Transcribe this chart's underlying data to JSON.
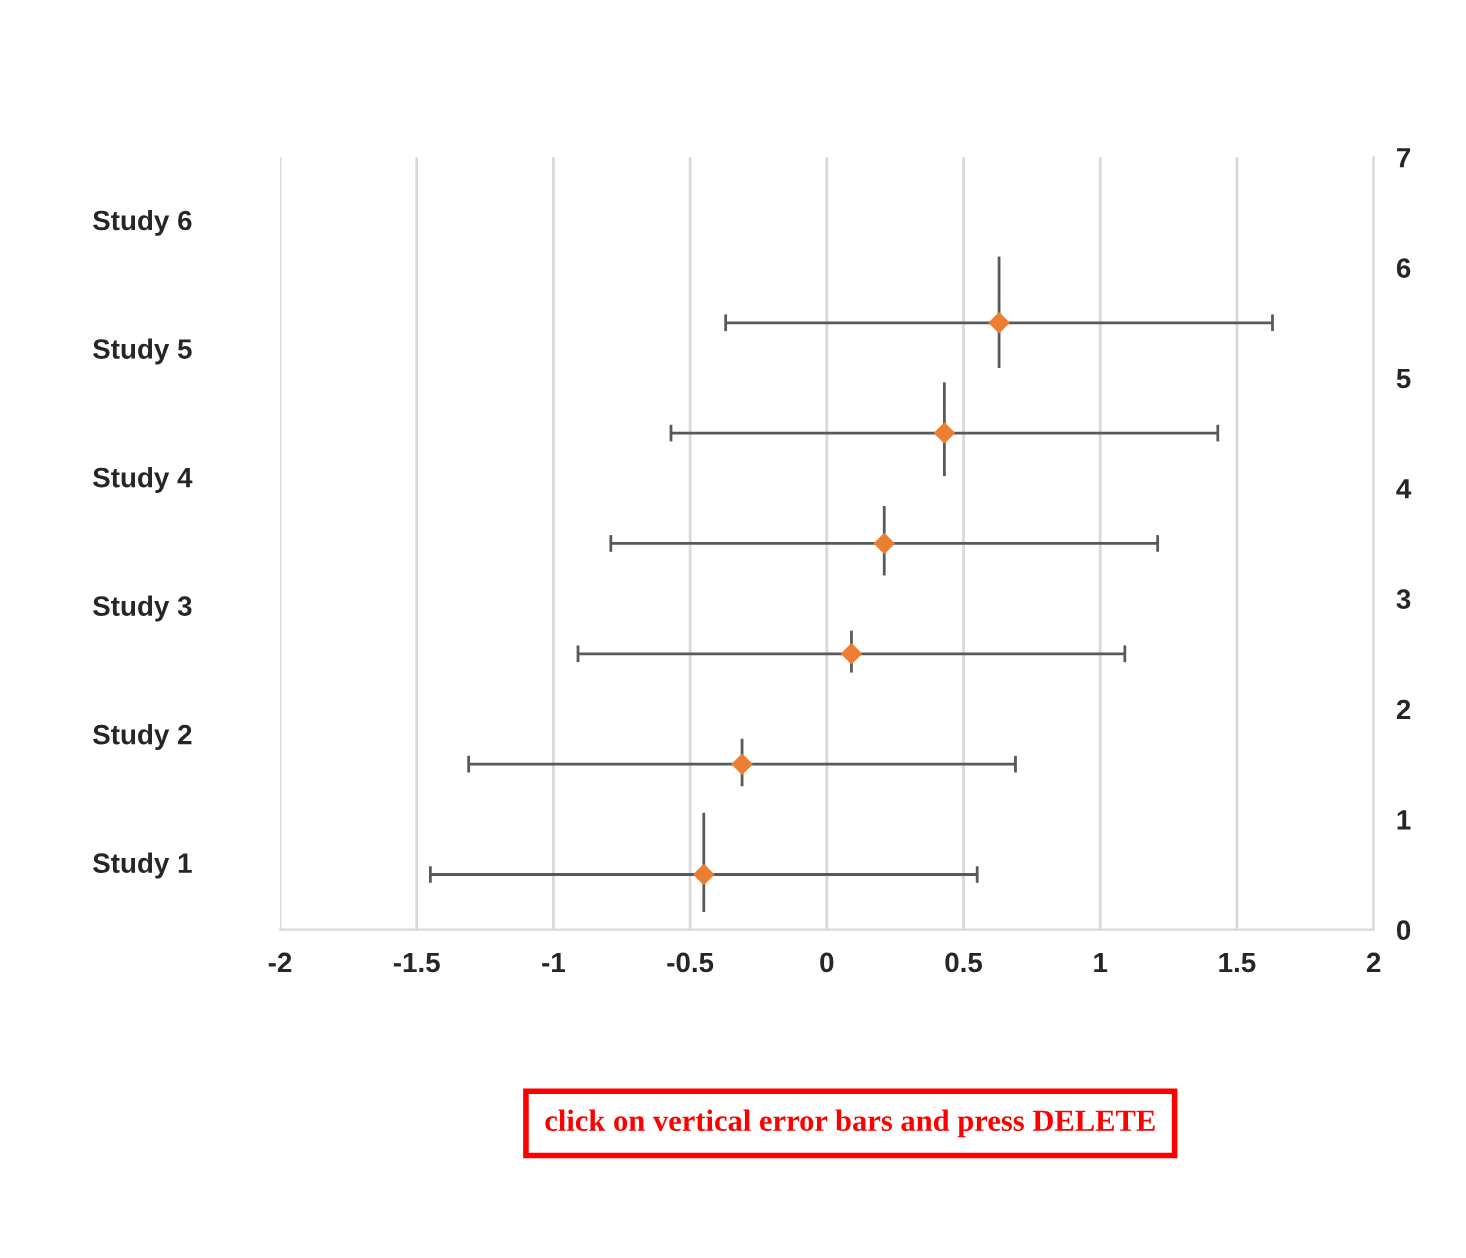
{
  "chart_data": {
    "type": "scatter",
    "x": [
      -0.45,
      -0.31,
      0.09,
      0.21,
      0.43,
      0.63
    ],
    "series": [
      {
        "color": "#ed7d31",
        "values": [
          0.5,
          1.5,
          2.5,
          3.5,
          4.5,
          5.5
        ],
        "xerrors": [
          1,
          1,
          1,
          1,
          1,
          1
        ],
        "errors": [
          [
            0.16,
            1.06
          ],
          [
            1.3,
            1.73
          ],
          [
            2.33,
            2.71
          ],
          [
            3.21,
            3.84
          ],
          [
            4.11,
            4.96
          ],
          [
            5.09,
            6.1
          ]
        ]
      }
    ],
    "marker": "diamond",
    "xlim": [
      -2,
      2
    ],
    "xticks": [
      -2,
      -1.5,
      -1,
      -0.5,
      0,
      0.5,
      1,
      1.5,
      2
    ],
    "ylim": [
      0,
      7
    ],
    "yticks": [
      0,
      1,
      2,
      3,
      4,
      5,
      6,
      7
    ],
    "grid": "x",
    "annotations": [
      "Study 6",
      "Study 5",
      "Study 4",
      "Study 3",
      "Study 2",
      "Study 1",
      "click on vertical error bars and press DELETE"
    ]
  }
}
